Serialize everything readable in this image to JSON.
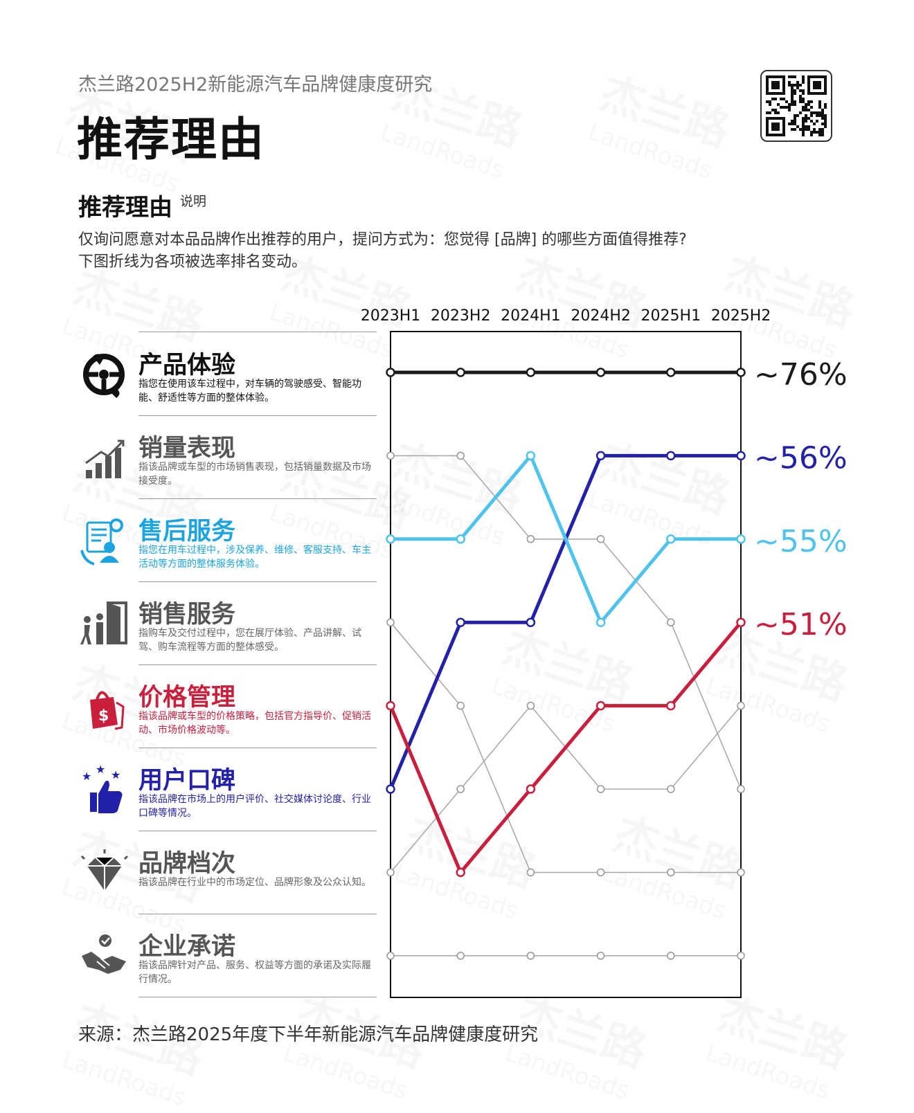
{
  "header": {
    "subtitle": "杰兰路2025H2新能源汽车品牌健康度研究",
    "title": "推荐理由"
  },
  "section": {
    "title": "推荐理由",
    "sup": "说明",
    "desc_line1": "仅询问愿意对本品品牌作出推荐的用户，提问方式为：您觉得 [品牌] 的哪些方面值得推荐?",
    "desc_line2": "下图折线为各项被选率排名变动。"
  },
  "source": "来源：杰兰路2025年度下半年新能源汽车品牌健康度研究",
  "watermark": {
    "cn": "杰兰路",
    "en": "LandRoads"
  },
  "categories": [
    {
      "name": "产品体验",
      "note": "指您在使用该车过程中，对车辆的驾驶感受、智能功能、舒适性等方面的整体体验。",
      "icon": "steering-wheel-icon"
    },
    {
      "name": "销量表现",
      "note": "指该品牌或车型的市场销售表现，包括销量数据及市场接受度。",
      "icon": "bar-growth-icon"
    },
    {
      "name": "售后服务",
      "note": "指您在用车过程中，涉及保养、维修、客服支持、车主活动等方面的整体服务体验。",
      "icon": "customer-service-icon"
    },
    {
      "name": "销售服务",
      "note": "指购车及交付过程中，您在展厅体验、产品讲解、试驾、购车流程等方面的整体感受。",
      "icon": "showroom-door-icon"
    },
    {
      "name": "价格管理",
      "note": "指该品牌或车型的价格策略，包括官方指导价、促销活动、市场价格波动等。",
      "icon": "price-bag-icon"
    },
    {
      "name": "用户口碑",
      "note": "指该品牌在市场上的用户评价、社交媒体讨论度、行业口碑等情况。",
      "icon": "thumbs-up-stars-icon"
    },
    {
      "name": "品牌档次",
      "note": "指该品牌在行业中的市场定位、品牌形象及公众认知。",
      "icon": "diamond-icon"
    },
    {
      "name": "企业承诺",
      "note": "指该品牌针对产品、服务、权益等方面的承诺及实际履行情况。",
      "icon": "handshake-icon"
    }
  ],
  "chart_data": {
    "type": "line",
    "description_type": "rank bump chart",
    "periods": [
      "2023H1",
      "2023H2",
      "2024H1",
      "2024H2",
      "2025H1",
      "2025H2"
    ],
    "rank_axis_order": [
      "产品体验",
      "销量表现",
      "售后服务",
      "销售服务",
      "价格管理",
      "用户口碑",
      "品牌档次",
      "企业承诺"
    ],
    "series": [
      {
        "name": "产品体验",
        "ranks": [
          1,
          1,
          1,
          1,
          1,
          1
        ],
        "color": "#1a1a1a",
        "highlight": true,
        "end_label": "~76%"
      },
      {
        "name": "用户口碑",
        "ranks": [
          6,
          4,
          4,
          2,
          2,
          2
        ],
        "color": "#2321a8",
        "highlight": true,
        "end_label": "~56%"
      },
      {
        "name": "售后服务",
        "ranks": [
          3,
          3,
          2,
          4,
          3,
          3
        ],
        "color": "#4fc3ec",
        "highlight": true,
        "end_label": "~55%"
      },
      {
        "name": "价格管理",
        "ranks": [
          5,
          7,
          6,
          5,
          5,
          4
        ],
        "color": "#c81f3c",
        "highlight": true,
        "end_label": "~51%"
      },
      {
        "name": "销量表现",
        "ranks": [
          2,
          2,
          3,
          3,
          4,
          6
        ],
        "color": "#aaaaaa",
        "highlight": false
      },
      {
        "name": "销售服务",
        "ranks": [
          4,
          5,
          7,
          7,
          7,
          7
        ],
        "color": "#aaaaaa",
        "highlight": false
      },
      {
        "name": "品牌档次",
        "ranks": [
          7,
          6,
          5,
          6,
          6,
          5
        ],
        "color": "#aaaaaa",
        "highlight": false
      },
      {
        "name": "企业承诺",
        "ranks": [
          8,
          8,
          8,
          8,
          8,
          8
        ],
        "color": "#aaaaaa",
        "highlight": false
      }
    ]
  }
}
